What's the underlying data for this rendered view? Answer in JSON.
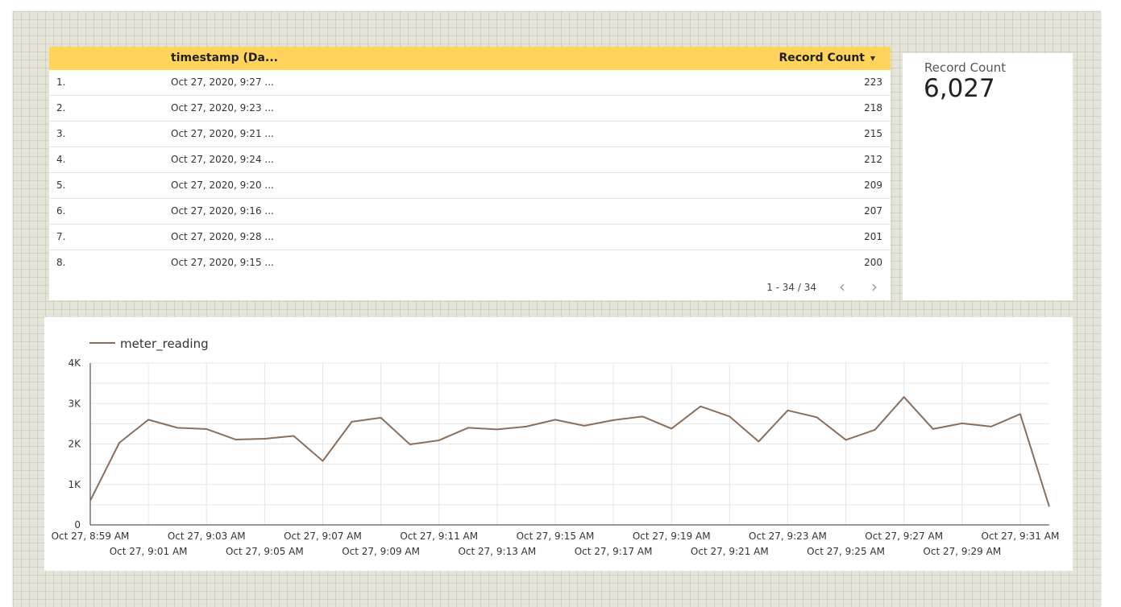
{
  "table": {
    "header": {
      "timestamp": "timestamp (Da...",
      "record_count": "Record Count"
    },
    "rows": [
      {
        "index": "1.",
        "timestamp": "Oct 27, 2020, 9:27 ...",
        "count": "223"
      },
      {
        "index": "2.",
        "timestamp": "Oct 27, 2020, 9:23 ...",
        "count": "218"
      },
      {
        "index": "3.",
        "timestamp": "Oct 27, 2020, 9:21 ...",
        "count": "215"
      },
      {
        "index": "4.",
        "timestamp": "Oct 27, 2020, 9:24 ...",
        "count": "212"
      },
      {
        "index": "5.",
        "timestamp": "Oct 27, 2020, 9:20 ...",
        "count": "209"
      },
      {
        "index": "6.",
        "timestamp": "Oct 27, 2020, 9:16 ...",
        "count": "207"
      },
      {
        "index": "7.",
        "timestamp": "Oct 27, 2020, 9:28 ...",
        "count": "201"
      },
      {
        "index": "8.",
        "timestamp": "Oct 27, 2020, 9:15 ...",
        "count": "200"
      }
    ],
    "pagination": "1 - 34 / 34",
    "sort_icon": "caret-down-icon",
    "prev_icon": "chevron-left-icon",
    "next_icon": "chevron-right-icon",
    "header_color": "#ffd45c"
  },
  "scorecard": {
    "label": "Record Count",
    "value": "6,027"
  },
  "chart_data": {
    "type": "line",
    "series": [
      {
        "name": "meter_reading",
        "color": "#8b6e5a",
        "x": [
          "Oct 27, 8:59 AM",
          "Oct 27, 9:00 AM",
          "Oct 27, 9:01 AM",
          "Oct 27, 9:02 AM",
          "Oct 27, 9:03 AM",
          "Oct 27, 9:04 AM",
          "Oct 27, 9:05 AM",
          "Oct 27, 9:06 AM",
          "Oct 27, 9:07 AM",
          "Oct 27, 9:08 AM",
          "Oct 27, 9:09 AM",
          "Oct 27, 9:10 AM",
          "Oct 27, 9:11 AM",
          "Oct 27, 9:12 AM",
          "Oct 27, 9:13 AM",
          "Oct 27, 9:14 AM",
          "Oct 27, 9:15 AM",
          "Oct 27, 9:16 AM",
          "Oct 27, 9:17 AM",
          "Oct 27, 9:18 AM",
          "Oct 27, 9:19 AM",
          "Oct 27, 9:20 AM",
          "Oct 27, 9:21 AM",
          "Oct 27, 9:22 AM",
          "Oct 27, 9:23 AM",
          "Oct 27, 9:24 AM",
          "Oct 27, 9:25 AM",
          "Oct 27, 9:26 AM",
          "Oct 27, 9:27 AM",
          "Oct 27, 9:28 AM",
          "Oct 27, 9:29 AM",
          "Oct 27, 9:30 AM",
          "Oct 27, 9:31 AM",
          "Oct 27, 9:32 AM"
        ],
        "values": [
          600,
          2030,
          2600,
          2400,
          2370,
          2110,
          2130,
          2200,
          1580,
          2550,
          2650,
          1990,
          2090,
          2400,
          2360,
          2430,
          2600,
          2450,
          2590,
          2680,
          2380,
          2930,
          2680,
          2060,
          2830,
          2660,
          2100,
          2350,
          3160,
          2370,
          2510,
          2430,
          2740,
          450
        ]
      }
    ],
    "x_tick_labels": [
      "Oct 27, 8:59 AM",
      "Oct 27, 9:01 AM",
      "Oct 27, 9:03 AM",
      "Oct 27, 9:05 AM",
      "Oct 27, 9:07 AM",
      "Oct 27, 9:09 AM",
      "Oct 27, 9:11 AM",
      "Oct 27, 9:13 AM",
      "Oct 27, 9:15 AM",
      "Oct 27, 9:17 AM",
      "Oct 27, 9:19 AM",
      "Oct 27, 9:21 AM",
      "Oct 27, 9:23 AM",
      "Oct 27, 9:25 AM",
      "Oct 27, 9:27 AM",
      "Oct 27, 9:29 AM",
      "Oct 27, 9:31 AM"
    ],
    "y_ticks": [
      0,
      1000,
      2000,
      3000,
      4000
    ],
    "y_tick_labels": [
      "0",
      "1K",
      "2K",
      "3K",
      "4K"
    ],
    "ylim": [
      0,
      4000
    ],
    "grid": true,
    "legend": "top-left",
    "title": "",
    "xlabel": "",
    "ylabel": ""
  }
}
